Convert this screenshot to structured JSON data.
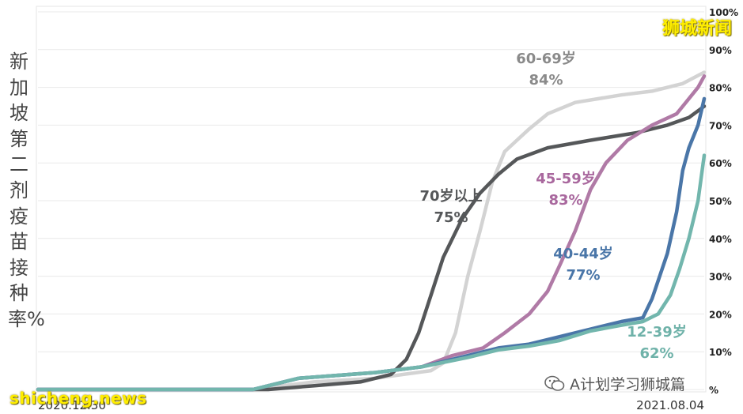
{
  "watermarks": {
    "top_right": "狮城新闻",
    "bottom_left": "shicheng.news",
    "wechat_account": "A计划学习狮城篇",
    "wechat_icon": "wechat-icon"
  },
  "chart_data": {
    "type": "line",
    "title": "",
    "ylabel": "新加坡第二剂疫苗接种率%",
    "xlabel": "",
    "x_range": [
      "2020.12.30",
      "2021.08.04"
    ],
    "x_days_total": 217,
    "x_tick_labels": [
      {
        "label": "2020.12.30",
        "day": 0
      },
      {
        "label": "2021.08.04",
        "day": 217
      }
    ],
    "ylim": [
      0,
      100
    ],
    "y_ticks": [
      0,
      10,
      20,
      30,
      40,
      50,
      60,
      70,
      80,
      90,
      100
    ],
    "y_tick_labels": [
      "%",
      "10%",
      "20%",
      "30%",
      "40%",
      "50%",
      "60%",
      "70%",
      "80%",
      "90%",
      "100%"
    ],
    "axis_side": "right",
    "grid": true,
    "series": [
      {
        "name": "60-69岁",
        "final_label": "84%",
        "color": "#d3d3d3",
        "points": [
          [
            0,
            0
          ],
          [
            70,
            0
          ],
          [
            90,
            2
          ],
          [
            110,
            3
          ],
          [
            128,
            5
          ],
          [
            132,
            7
          ],
          [
            136,
            15
          ],
          [
            140,
            30
          ],
          [
            144,
            42
          ],
          [
            148,
            55
          ],
          [
            152,
            63
          ],
          [
            156,
            66
          ],
          [
            160,
            69
          ],
          [
            166,
            73
          ],
          [
            175,
            76
          ],
          [
            190,
            78
          ],
          [
            200,
            79
          ],
          [
            210,
            81
          ],
          [
            217,
            84
          ]
        ]
      },
      {
        "name": "70岁以上",
        "final_label": "75%",
        "color": "#555759",
        "points": [
          [
            0,
            0
          ],
          [
            75,
            0
          ],
          [
            90,
            1
          ],
          [
            105,
            2
          ],
          [
            115,
            4
          ],
          [
            120,
            8
          ],
          [
            124,
            15
          ],
          [
            128,
            25
          ],
          [
            132,
            35
          ],
          [
            138,
            45
          ],
          [
            144,
            52
          ],
          [
            150,
            57
          ],
          [
            156,
            61
          ],
          [
            166,
            64
          ],
          [
            180,
            66
          ],
          [
            195,
            68
          ],
          [
            205,
            70
          ],
          [
            212,
            72
          ],
          [
            217,
            75
          ]
        ]
      },
      {
        "name": "45-59岁",
        "final_label": "83%",
        "color": "#b07aa6",
        "points": [
          [
            0,
            0
          ],
          [
            70,
            0
          ],
          [
            85,
            3
          ],
          [
            110,
            4.5
          ],
          [
            125,
            6
          ],
          [
            135,
            9
          ],
          [
            145,
            11
          ],
          [
            152,
            15
          ],
          [
            160,
            20
          ],
          [
            166,
            26
          ],
          [
            170,
            33
          ],
          [
            175,
            42
          ],
          [
            180,
            53
          ],
          [
            185,
            60
          ],
          [
            192,
            66
          ],
          [
            200,
            70
          ],
          [
            208,
            73
          ],
          [
            215,
            80
          ],
          [
            217,
            83
          ]
        ]
      },
      {
        "name": "40-44岁",
        "final_label": "77%",
        "color": "#4a76a8",
        "points": [
          [
            0,
            0
          ],
          [
            70,
            0
          ],
          [
            85,
            3
          ],
          [
            110,
            4.5
          ],
          [
            125,
            6
          ],
          [
            140,
            9
          ],
          [
            150,
            11
          ],
          [
            160,
            12
          ],
          [
            170,
            14
          ],
          [
            180,
            16
          ],
          [
            190,
            18
          ],
          [
            197,
            19
          ],
          [
            200,
            24
          ],
          [
            205,
            36
          ],
          [
            208,
            47
          ],
          [
            210,
            58
          ],
          [
            212,
            64
          ],
          [
            215,
            70
          ],
          [
            217,
            77
          ]
        ]
      },
      {
        "name": "12-39岁",
        "final_label": "62%",
        "color": "#72b6ad",
        "points": [
          [
            0,
            0
          ],
          [
            70,
            0
          ],
          [
            85,
            3
          ],
          [
            110,
            4.5
          ],
          [
            125,
            6
          ],
          [
            140,
            8.5
          ],
          [
            150,
            10.5
          ],
          [
            160,
            11.5
          ],
          [
            170,
            13
          ],
          [
            180,
            15.5
          ],
          [
            190,
            17
          ],
          [
            197,
            18
          ],
          [
            202,
            20
          ],
          [
            206,
            25
          ],
          [
            209,
            32
          ],
          [
            212,
            40
          ],
          [
            215,
            50
          ],
          [
            217,
            62
          ]
        ]
      }
    ]
  }
}
